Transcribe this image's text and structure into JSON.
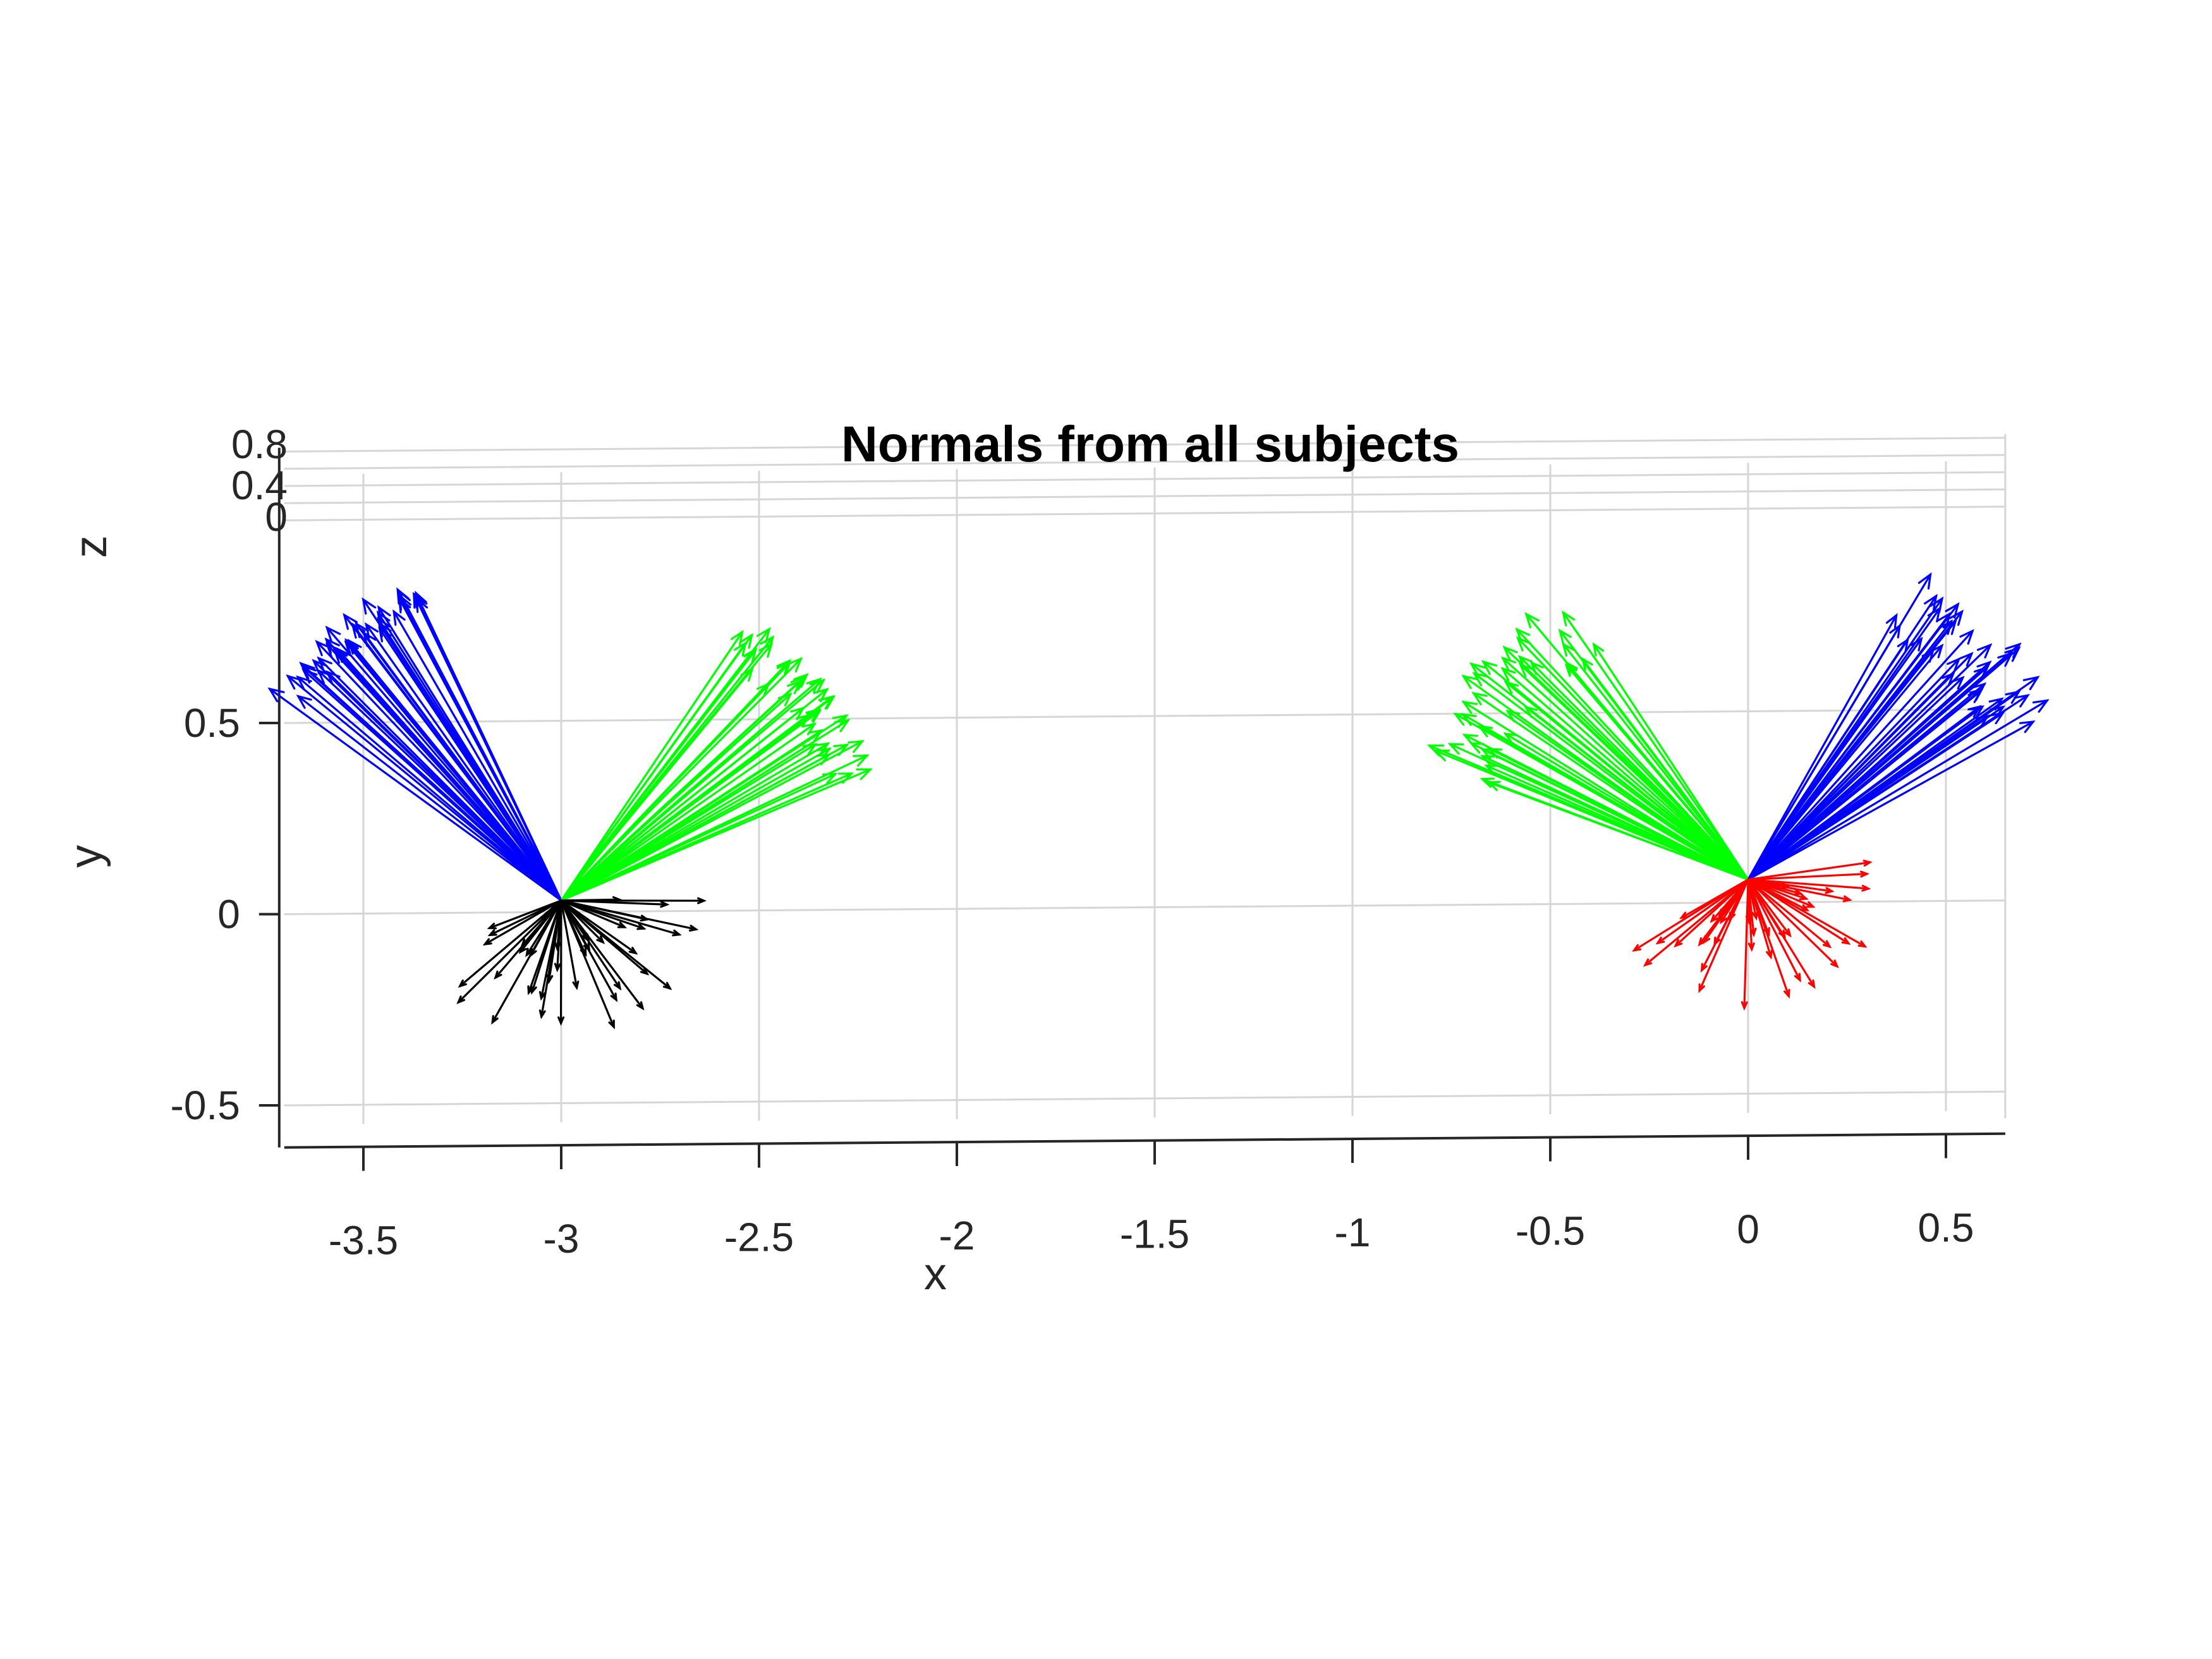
{
  "chart_data": {
    "type": "quiver3",
    "title": "Normals from all subjects",
    "xlabel": "x",
    "ylabel": "y",
    "zlabel": "z",
    "xlim": [
      -3.7,
      0.65
    ],
    "ylim": [
      -0.55,
      0.7
    ],
    "zlim": [
      0,
      0.8
    ],
    "x_ticks": [
      "-3.5",
      "-3",
      "-2.5",
      "-2",
      "-1.5",
      "-1",
      "-0.5",
      "0",
      "0.5"
    ],
    "y_ticks": [
      "-0.5",
      "0",
      "0.5"
    ],
    "z_ticks": [
      "0",
      "0.4",
      "0.8"
    ],
    "grid": true,
    "groups": [
      {
        "color": "#0000ff",
        "origin": [
          -3.0,
          0.03
        ],
        "count": 40,
        "angle_deg": [
          142,
          115
        ],
        "length": [
          0.85,
          0.95
        ]
      },
      {
        "color": "#00ff00",
        "origin": [
          -3.0,
          0.03
        ],
        "count": 40,
        "angle_deg": [
          24,
          55
        ],
        "length": [
          0.78,
          0.9
        ]
      },
      {
        "color": "#000000",
        "origin": [
          -3.0,
          0.03
        ],
        "count": 40,
        "angle_deg": [
          -160,
          5
        ],
        "length": [
          0.12,
          0.38
        ]
      },
      {
        "color": "#00ff00",
        "origin": [
          0.0,
          0.06
        ],
        "count": 40,
        "angle_deg": [
          125,
          160
        ],
        "length": [
          0.72,
          0.92
        ]
      },
      {
        "color": "#0000ff",
        "origin": [
          0.0,
          0.06
        ],
        "count": 40,
        "angle_deg": [
          60,
          30
        ],
        "length": [
          0.75,
          0.95
        ]
      },
      {
        "color": "#ff0000",
        "origin": [
          0.0,
          0.06
        ],
        "count": 40,
        "angle_deg": [
          -155,
          5
        ],
        "length": [
          0.1,
          0.36
        ]
      }
    ]
  }
}
